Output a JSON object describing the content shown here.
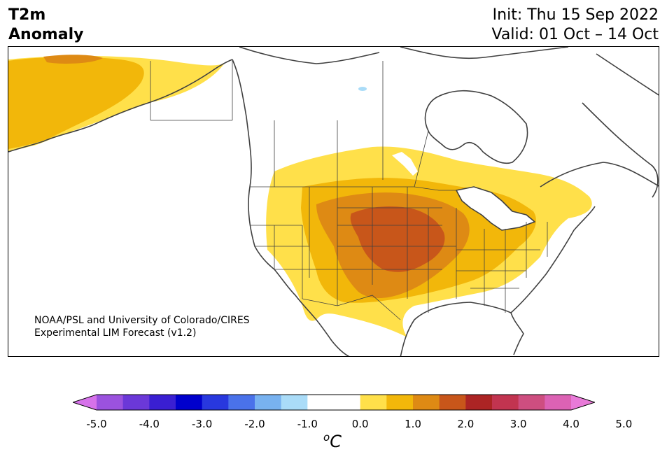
{
  "title": {
    "variable": "T2m",
    "type": "Anomaly",
    "init": "Init: Thu 15 Sep 2022",
    "valid": "Valid: 01 Oct – 14 Oct"
  },
  "credit": {
    "line1": "NOAA/PSL and University of Colorado/CIRES",
    "line2": "Experimental LIM Forecast (v1.2)"
  },
  "colorbar": {
    "colors": [
      "#d672ea",
      "#9b52de",
      "#6b38d8",
      "#3a1fd2",
      "#0000cc",
      "#2838de",
      "#4a72ea",
      "#78b2f0",
      "#aadcf8",
      "#ffffff",
      "#ffffff",
      "#ffe04a",
      "#f2b70a",
      "#de8a14",
      "#c8561a",
      "#ac2424",
      "#c23450",
      "#ce4e80",
      "#dc62b4",
      "#e87ad8"
    ],
    "ticks": [
      "-5.0",
      "-4.0",
      "-3.0",
      "-2.0",
      "-1.0",
      "0.0",
      "1.0",
      "2.0",
      "3.0",
      "4.0",
      "5.0"
    ],
    "unit_super": "o",
    "unit_letter": "C"
  }
}
